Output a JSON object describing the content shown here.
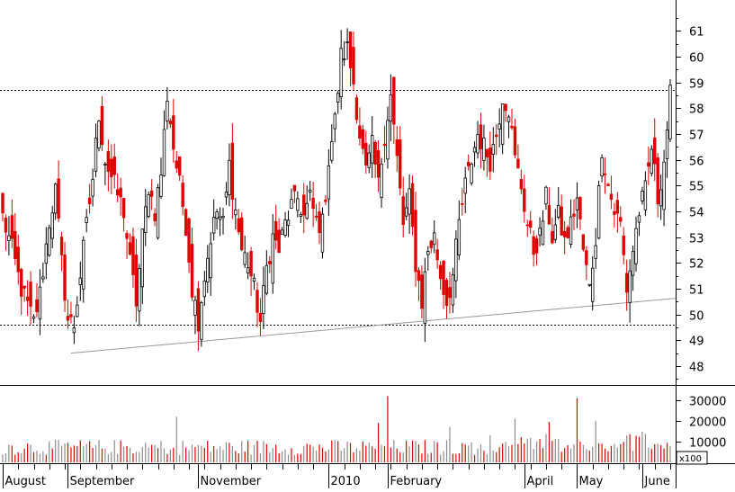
{
  "colors": {
    "up": "#000000",
    "down": "#e00000",
    "volume_up": "#8c8c8c",
    "volume_down": "#e00000",
    "trendline": "#9a9a9a"
  },
  "chart_data": [
    {
      "type": "candlestick",
      "title": "",
      "xlabel": "",
      "ylabel": "",
      "ylim": [
        47.3,
        62.2
      ],
      "y_ticks": [
        48,
        49,
        50,
        51,
        52,
        53,
        54,
        55,
        56,
        57,
        58,
        59,
        60,
        61
      ],
      "grid": false,
      "months": [
        {
          "label": "August",
          "start_index": 0
        },
        {
          "label": "September",
          "start_index": 21
        },
        {
          "label": "November",
          "start_index": 63
        },
        {
          "label": "2010",
          "start_index": 105
        },
        {
          "label": "February",
          "start_index": 124
        },
        {
          "label": "April",
          "start_index": 168
        },
        {
          "label": "May",
          "start_index": 185
        },
        {
          "label": "June",
          "start_index": 206
        }
      ],
      "horizontal_levels": [
        58.7,
        49.6
      ],
      "trendline": {
        "from": {
          "index": 22,
          "value": 48.5
        },
        "to": {
          "index": 214,
          "value": 50.6
        }
      },
      "anchors": [
        [
          0,
          53.8
        ],
        [
          3,
          52.5
        ],
        [
          6,
          51.0
        ],
        [
          10,
          49.7
        ],
        [
          12,
          50.8
        ],
        [
          15,
          53.6
        ],
        [
          17,
          54.8
        ],
        [
          19,
          52.0
        ],
        [
          21,
          49.8
        ],
        [
          23,
          49.6
        ],
        [
          26,
          52.5
        ],
        [
          29,
          55.3
        ],
        [
          31,
          57.8
        ],
        [
          33,
          56.0
        ],
        [
          36,
          55.0
        ],
        [
          39,
          54.0
        ],
        [
          41,
          52.0
        ],
        [
          43,
          50.5
        ],
        [
          45,
          53.0
        ],
        [
          47,
          55.0
        ],
        [
          49,
          54.0
        ],
        [
          51,
          55.5
        ],
        [
          53,
          58.5
        ],
        [
          55,
          56.5
        ],
        [
          57,
          55.0
        ],
        [
          59,
          53.5
        ],
        [
          61,
          51.0
        ],
        [
          63,
          49.8
        ],
        [
          65,
          51.5
        ],
        [
          67,
          53.0
        ],
        [
          69,
          54.0
        ],
        [
          71,
          53.5
        ],
        [
          73,
          55.8
        ],
        [
          75,
          54.0
        ],
        [
          77,
          52.5
        ],
        [
          79,
          52.0
        ],
        [
          81,
          51.0
        ],
        [
          83,
          49.7
        ],
        [
          85,
          51.8
        ],
        [
          87,
          53.0
        ],
        [
          89,
          52.5
        ],
        [
          91,
          53.5
        ],
        [
          93,
          54.2
        ],
        [
          95,
          54.5
        ],
        [
          97,
          53.8
        ],
        [
          99,
          54.5
        ],
        [
          101,
          53.6
        ],
        [
          103,
          53.5
        ],
        [
          105,
          56.0
        ],
        [
          107,
          57.5
        ],
        [
          109,
          60.0
        ],
        [
          111,
          60.3
        ],
        [
          113,
          59.0
        ],
        [
          115,
          57.0
        ],
        [
          117,
          55.5
        ],
        [
          119,
          56.5
        ],
        [
          121,
          55.0
        ],
        [
          123,
          57.0
        ],
        [
          125,
          58.5
        ],
        [
          127,
          56.0
        ],
        [
          129,
          53.5
        ],
        [
          131,
          54.5
        ],
        [
          133,
          52.0
        ],
        [
          135,
          50.5
        ],
        [
          137,
          52.5
        ],
        [
          139,
          53.0
        ],
        [
          141,
          51.5
        ],
        [
          143,
          50.5
        ],
        [
          145,
          51.5
        ],
        [
          147,
          53.5
        ],
        [
          149,
          55.0
        ],
        [
          151,
          56.0
        ],
        [
          153,
          57.0
        ],
        [
          155,
          56.5
        ],
        [
          157,
          56.0
        ],
        [
          159,
          57.0
        ],
        [
          161,
          58.5
        ],
        [
          163,
          58.0
        ],
        [
          165,
          56.0
        ],
        [
          167,
          55.0
        ],
        [
          169,
          53.5
        ],
        [
          171,
          52.5
        ],
        [
          173,
          53.0
        ],
        [
          175,
          54.5
        ],
        [
          177,
          53.0
        ],
        [
          179,
          53.8
        ],
        [
          181,
          52.8
        ],
        [
          183,
          53.5
        ],
        [
          185,
          54.5
        ],
        [
          187,
          52.5
        ],
        [
          189,
          51.0
        ],
        [
          191,
          53.0
        ],
        [
          193,
          56.5
        ],
        [
          195,
          55.0
        ],
        [
          197,
          54.0
        ],
        [
          199,
          53.5
        ],
        [
          201,
          51.0
        ],
        [
          203,
          52.5
        ],
        [
          205,
          54.0
        ],
        [
          207,
          54.8
        ],
        [
          209,
          56.5
        ],
        [
          211,
          54.5
        ],
        [
          213,
          56.0
        ],
        [
          215,
          58.5
        ]
      ]
    },
    {
      "type": "bar",
      "title": "",
      "xlabel": "",
      "ylabel": "",
      "ylim": [
        0,
        36000
      ],
      "y_ticks": [
        10000,
        20000,
        30000
      ],
      "multiplier_label": "x100",
      "spikes": [
        [
          46,
          9500
        ],
        [
          56,
          22000
        ],
        [
          121,
          19000
        ],
        [
          124,
          32000
        ],
        [
          157,
          13000
        ],
        [
          165,
          21000
        ],
        [
          185,
          31000
        ],
        [
          176,
          19500
        ],
        [
          191,
          20000
        ],
        [
          144,
          17000
        ]
      ]
    }
  ]
}
